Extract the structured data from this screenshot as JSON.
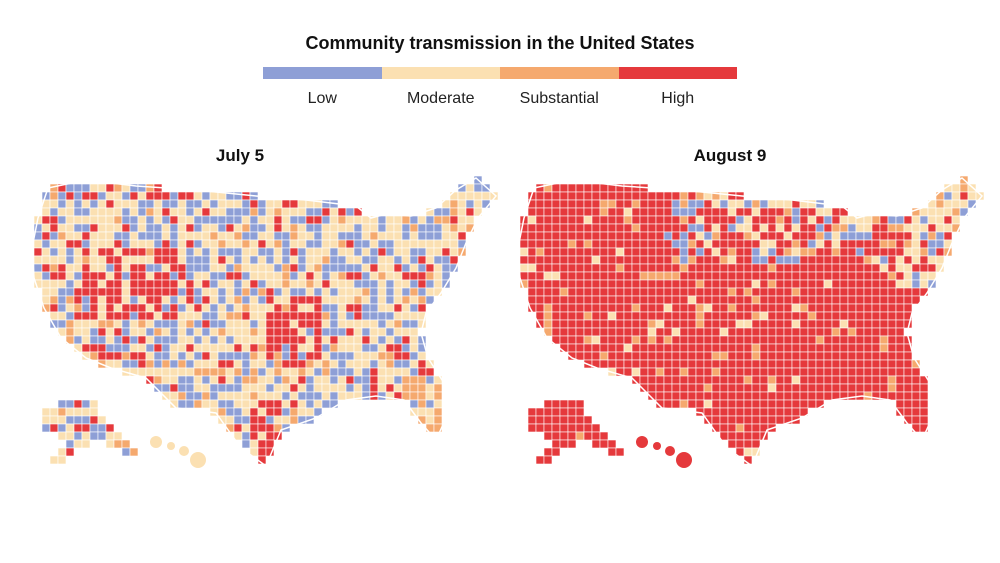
{
  "title": "Community transmission in the United States",
  "legend": [
    {
      "label": "Low",
      "color": "#8e9fd6"
    },
    {
      "label": "Moderate",
      "color": "#fbe0b2"
    },
    {
      "label": "Substantial",
      "color": "#f5a96e"
    },
    {
      "label": "High",
      "color": "#e5393c"
    }
  ],
  "maps": [
    {
      "title": "July 5",
      "dominant_level": "Moderate",
      "mix": {
        "Low": 0.3,
        "Moderate": 0.45,
        "Substantial": 0.1,
        "High": 0.15
      },
      "high_hotspots": [
        "Nevada/Utah",
        "Missouri/Arkansas",
        "Louisiana",
        "Florida"
      ]
    },
    {
      "title": "August 9",
      "dominant_level": "High",
      "mix": {
        "Low": 0.03,
        "Moderate": 0.07,
        "Substantial": 0.1,
        "High": 0.8
      },
      "non_high_areas": [
        "Northeast",
        "Upper Midwest",
        "Northern Plains"
      ]
    }
  ]
}
